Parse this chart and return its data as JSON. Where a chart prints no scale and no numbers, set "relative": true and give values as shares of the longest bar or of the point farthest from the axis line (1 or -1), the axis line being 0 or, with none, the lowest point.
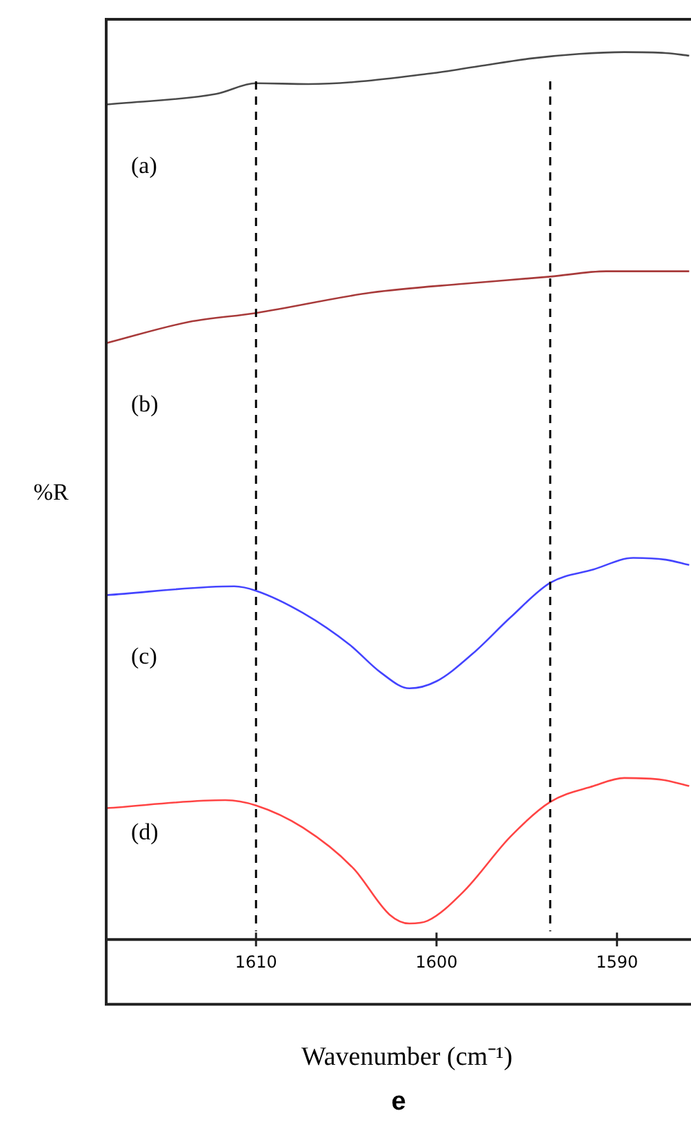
{
  "chart_data": {
    "type": "line",
    "relative": true,
    "xlabel": "Wavenumber (cm⁻¹)",
    "ylabel": "%R",
    "annotations": [
      "e"
    ],
    "xlim": [
      1618.3,
      1585.9
    ],
    "xticks": [
      1610,
      1600,
      1590
    ],
    "grid": false,
    "legend": false,
    "marker": "none",
    "line_style": "solid",
    "ref_lines": [
      {
        "axis": "x",
        "value": 1610,
        "color": "#000000",
        "line_style": "dashed"
      },
      {
        "axis": "x",
        "value": 1593.7,
        "color": "#000000",
        "line_style": "dashed"
      }
    ],
    "series": [
      {
        "name": "(a)",
        "color": "#4a4a4a",
        "x": [
          1618.3,
          1612.2,
          1610,
          1607.1,
          1600.3,
          1597.7,
          1594.7,
          1592.1,
          1589.6,
          1587.3,
          1586.0
        ],
        "values": [
          0.941,
          0.953,
          0.965,
          0.964,
          0.976,
          0.984,
          0.993,
          0.998,
          1.0,
          0.999,
          0.996
        ]
      },
      {
        "name": "(b)",
        "color": "#a83a3a",
        "x": [
          1618.3,
          1613.7,
          1610,
          1603.6,
          1598.5,
          1593.7,
          1590.6,
          1586.0
        ],
        "values": [
          0.672,
          0.696,
          0.706,
          0.729,
          0.739,
          0.747,
          0.753,
          0.753
        ]
      },
      {
        "name": "(c)",
        "color": "#4444ff",
        "x": [
          1618.3,
          1611.2,
          1610,
          1607.4,
          1604.8,
          1603.1,
          1601.5,
          1600,
          1598,
          1595.9,
          1593.7,
          1591.3,
          1589.1,
          1587.3,
          1586.0
        ],
        "values": [
          0.388,
          0.398,
          0.393,
          0.368,
          0.332,
          0.301,
          0.283,
          0.291,
          0.322,
          0.363,
          0.402,
          0.417,
          0.43,
          0.428,
          0.422
        ]
      },
      {
        "name": "(d)",
        "color": "#ff4444",
        "x": [
          1618.3,
          1611.7,
          1610,
          1607.4,
          1604.6,
          1602.6,
          1601.5,
          1600.5,
          1598.5,
          1595.9,
          1593.7,
          1591.3,
          1589.6,
          1587.5,
          1586.0
        ],
        "values": [
          0.148,
          0.157,
          0.151,
          0.126,
          0.08,
          0.028,
          0.018,
          0.021,
          0.054,
          0.116,
          0.155,
          0.173,
          0.182,
          0.18,
          0.173
        ]
      }
    ]
  }
}
